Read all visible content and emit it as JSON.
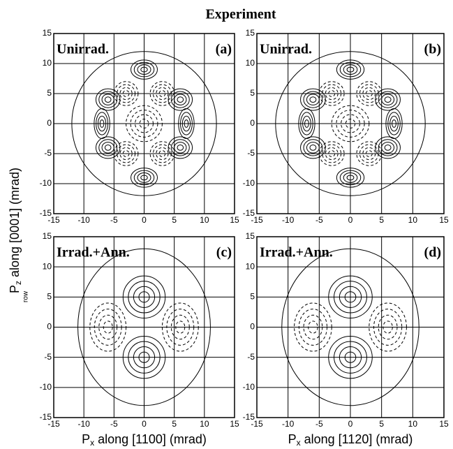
{
  "title": "Experiment",
  "y_label": {
    "symbol": "P",
    "subscript": "z",
    "text": " along [0001] (mrad)",
    "note": "row"
  },
  "chart_data": [
    {
      "type": "contour",
      "annotation": "Unirrad.",
      "panel": "(a)",
      "xlim": [
        -15,
        15
      ],
      "ylim": [
        -15,
        15
      ],
      "xticks": [
        -15,
        -10,
        -5,
        0,
        5,
        10,
        15
      ],
      "yticks": [
        -15,
        -10,
        -5,
        0,
        5,
        10,
        15
      ],
      "grid": true
    },
    {
      "type": "contour",
      "annotation": "Unirrad.",
      "panel": "(b)",
      "xlim": [
        -15,
        15
      ],
      "ylim": [
        -15,
        15
      ],
      "xticks": [
        -15,
        -10,
        -5,
        0,
        5,
        10,
        15
      ],
      "yticks": [
        -15,
        -10,
        -5,
        0,
        5,
        10,
        15
      ],
      "grid": true
    },
    {
      "type": "contour",
      "annotation": "Irrad.+Ann.",
      "panel": "(c)",
      "xlim": [
        -15,
        15
      ],
      "ylim": [
        -15,
        15
      ],
      "xticks": [
        -15,
        -10,
        -5,
        0,
        5,
        10,
        15
      ],
      "yticks": [
        -15,
        -10,
        -5,
        0,
        5,
        10,
        15
      ],
      "grid": true,
      "x_label": {
        "symbol": "P",
        "subscript": "x",
        "text": " along [1100] (mrad)"
      }
    },
    {
      "type": "contour",
      "annotation": "Irrad.+Ann.",
      "panel": "(d)",
      "xlim": [
        -15,
        15
      ],
      "ylim": [
        -15,
        15
      ],
      "xticks": [
        -15,
        -10,
        -5,
        0,
        5,
        10,
        15
      ],
      "yticks": [
        -15,
        -10,
        -5,
        0,
        5,
        10,
        15
      ],
      "grid": true,
      "x_label": {
        "symbol": "P",
        "subscript": "x",
        "text": " along [1120] (mrad)"
      }
    }
  ]
}
